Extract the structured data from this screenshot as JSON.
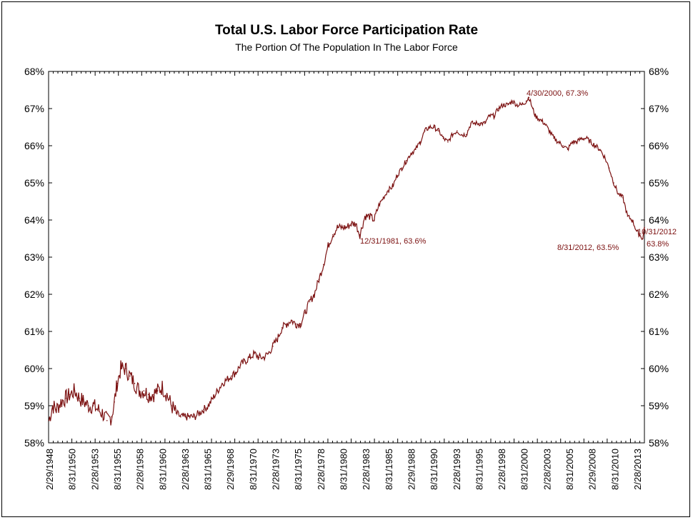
{
  "chart_data": {
    "type": "line",
    "title": "Total U.S. Labor Force Participation Rate",
    "subtitle": "The Portion Of The Population In The Labor Force",
    "xlabel": "",
    "ylabel": "",
    "ylim": [
      58,
      68
    ],
    "xlim": [
      1948.16,
      2012.83
    ],
    "y_ticks": [
      58,
      59,
      60,
      61,
      62,
      63,
      64,
      65,
      66,
      67,
      68
    ],
    "y_tick_labels": [
      "58%",
      "59%",
      "60%",
      "61%",
      "62%",
      "63%",
      "64%",
      "65%",
      "66%",
      "67%",
      "68%"
    ],
    "x_tick_labels": [
      "2/29/1948",
      "8/31/1950",
      "2/28/1953",
      "8/31/1955",
      "2/28/1958",
      "8/31/1960",
      "2/28/1963",
      "8/31/1965",
      "2/29/1968",
      "8/31/1970",
      "2/28/1973",
      "8/31/1975",
      "2/28/1978",
      "8/31/1980",
      "2/28/1983",
      "8/31/1985",
      "2/29/1988",
      "8/31/1990",
      "2/28/1993",
      "8/31/1995",
      "2/28/1998",
      "8/31/2000",
      "2/28/2003",
      "8/31/2005",
      "2/29/2008",
      "8/31/2010",
      "2/28/2013"
    ],
    "grid": false,
    "series": [
      {
        "name": "Total U.S. Labor Force Participation Rate",
        "color": "#7b1010",
        "x": [
          1948.2,
          1948.6,
          1949.0,
          1949.5,
          1950.0,
          1950.5,
          1951.0,
          1951.5,
          1952.0,
          1952.5,
          1953.0,
          1953.5,
          1954.0,
          1954.5,
          1955.0,
          1955.3,
          1955.6,
          1956.0,
          1956.5,
          1957.0,
          1957.5,
          1958.0,
          1958.5,
          1959.0,
          1959.5,
          1960.0,
          1960.5,
          1961.0,
          1961.5,
          1962.0,
          1962.5,
          1963.0,
          1963.5,
          1964.0,
          1964.5,
          1965.0,
          1965.5,
          1966.0,
          1966.5,
          1967.0,
          1967.5,
          1968.0,
          1968.5,
          1969.0,
          1969.5,
          1970.0,
          1970.5,
          1971.0,
          1971.5,
          1972.0,
          1972.5,
          1973.0,
          1973.5,
          1974.0,
          1974.5,
          1975.0,
          1975.5,
          1976.0,
          1976.5,
          1977.0,
          1977.5,
          1978.0,
          1978.5,
          1979.0,
          1979.5,
          1980.0,
          1980.5,
          1981.0,
          1981.5,
          1981.95,
          1982.5,
          1983.0,
          1983.5,
          1984.0,
          1984.5,
          1985.0,
          1985.5,
          1986.0,
          1986.5,
          1987.0,
          1987.5,
          1988.0,
          1988.5,
          1989.0,
          1989.5,
          1990.0,
          1990.5,
          1991.0,
          1991.5,
          1992.0,
          1992.5,
          1993.0,
          1993.5,
          1994.0,
          1994.5,
          1995.0,
          1995.5,
          1996.0,
          1996.5,
          1997.0,
          1997.5,
          1998.0,
          1998.5,
          1999.0,
          1999.5,
          2000.0,
          2000.3,
          2000.7,
          2001.0,
          2001.5,
          2002.0,
          2002.5,
          2003.0,
          2003.5,
          2004.0,
          2004.5,
          2005.0,
          2005.5,
          2006.0,
          2006.5,
          2007.0,
          2007.5,
          2008.0,
          2008.5,
          2009.0,
          2009.5,
          2010.0,
          2010.5,
          2011.0,
          2011.5,
          2012.0,
          2012.3,
          2012.66,
          2012.83
        ],
        "values": [
          58.6,
          59.0,
          58.9,
          59.1,
          59.2,
          59.3,
          59.4,
          59.2,
          59.1,
          59.0,
          59.0,
          58.9,
          58.8,
          58.6,
          58.7,
          59.1,
          59.6,
          60.0,
          60.0,
          59.8,
          59.6,
          59.4,
          59.4,
          59.3,
          59.3,
          59.4,
          59.5,
          59.3,
          59.0,
          58.8,
          58.7,
          58.7,
          58.7,
          58.7,
          58.8,
          58.9,
          59.0,
          59.2,
          59.4,
          59.6,
          59.7,
          59.8,
          59.9,
          60.1,
          60.2,
          60.3,
          60.4,
          60.3,
          60.3,
          60.4,
          60.6,
          60.8,
          61.1,
          61.2,
          61.3,
          61.2,
          61.2,
          61.5,
          61.8,
          62.0,
          62.4,
          62.8,
          63.3,
          63.6,
          63.8,
          63.8,
          63.8,
          63.9,
          63.9,
          63.6,
          64.1,
          64.1,
          64.0,
          64.4,
          64.6,
          64.8,
          64.9,
          65.2,
          65.4,
          65.6,
          65.8,
          65.9,
          66.1,
          66.4,
          66.5,
          66.5,
          66.4,
          66.2,
          66.1,
          66.3,
          66.4,
          66.3,
          66.3,
          66.6,
          66.6,
          66.6,
          66.6,
          66.8,
          66.8,
          67.0,
          67.1,
          67.1,
          67.2,
          67.1,
          67.1,
          67.2,
          67.3,
          67.0,
          66.8,
          66.7,
          66.6,
          66.4,
          66.2,
          66.1,
          66.0,
          65.9,
          66.1,
          66.1,
          66.2,
          66.2,
          66.1,
          66.0,
          65.9,
          65.7,
          65.4,
          65.0,
          64.7,
          64.6,
          64.1,
          64.0,
          63.7,
          63.6,
          63.5,
          63.8
        ]
      }
    ],
    "annotations": [
      {
        "label": "4/30/2000, 67.3%",
        "x": 2000.33,
        "y": 67.3
      },
      {
        "label": "12/31/1981, 63.6%",
        "x": 1981.95,
        "y": 63.6
      },
      {
        "label": "8/31/2012, 63.5%",
        "x": 2012.66,
        "y": 63.5
      },
      {
        "label": "10/31/2012",
        "x": 2012.83,
        "y": 63.8
      },
      {
        "label": "63.8%",
        "x": 2012.83,
        "y": 63.8
      }
    ]
  }
}
